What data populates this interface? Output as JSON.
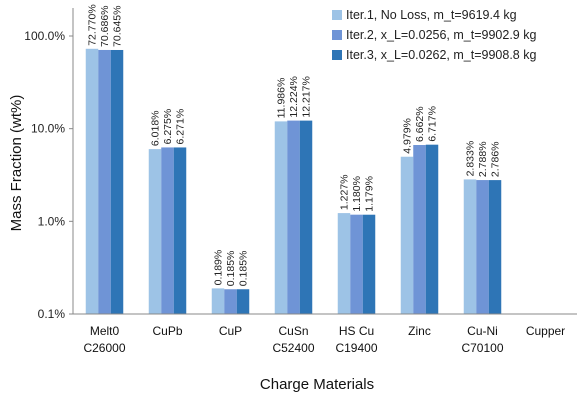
{
  "chart_data": {
    "type": "bar",
    "title": "",
    "xlabel": "Charge Materials",
    "ylabel": "Mass Fraction (wt%)",
    "yscale": "log",
    "ylim": [
      0.1,
      100
    ],
    "yticks": [
      0.1,
      1,
      10,
      100
    ],
    "ytick_labels": [
      "0.1%",
      "1.0%",
      "10.0%",
      "100.0%"
    ],
    "grid": false,
    "legend_position": "top-right",
    "categories": [
      [
        "Melt0",
        "C26000"
      ],
      [
        "CuPb"
      ],
      [
        "CuP"
      ],
      [
        "CuSn",
        "C52400"
      ],
      [
        "HS Cu",
        "C19400"
      ],
      [
        "Zinc"
      ],
      [
        "Cu-Ni",
        "C70100"
      ],
      [
        "Cupper"
      ]
    ],
    "series": [
      {
        "name": "Iter.1, No Loss, m_t=9619.4 kg",
        "color": "#9dc3e6",
        "values": [
          72.77,
          6.018,
          0.189,
          11.986,
          1.227,
          4.979,
          2.833,
          null
        ],
        "labels": [
          "72.770%",
          "6.018%",
          "0.189%",
          "11.986%",
          "1.227%",
          "4.979%",
          "2.833%",
          ""
        ]
      },
      {
        "name": "Iter.2, x_L=0.0256, m_t=9902.9 kg",
        "color": "#6f94d6",
        "values": [
          70.686,
          6.275,
          0.185,
          12.224,
          1.18,
          6.662,
          2.788,
          null
        ],
        "labels": [
          "70.686%",
          "6.275%",
          "0.185%",
          "12.224%",
          "1.180%",
          "6.662%",
          "2.788%",
          ""
        ]
      },
      {
        "name": "Iter.3, x_L=0.0262, m_t=9908.8 kg",
        "color": "#2e75b6",
        "values": [
          70.645,
          6.271,
          0.185,
          12.217,
          1.179,
          6.717,
          2.786,
          null
        ],
        "labels": [
          "70.645%",
          "6.271%",
          "0.185%",
          "12.217%",
          "1.179%",
          "6.717%",
          "2.786%",
          ""
        ]
      }
    ]
  }
}
